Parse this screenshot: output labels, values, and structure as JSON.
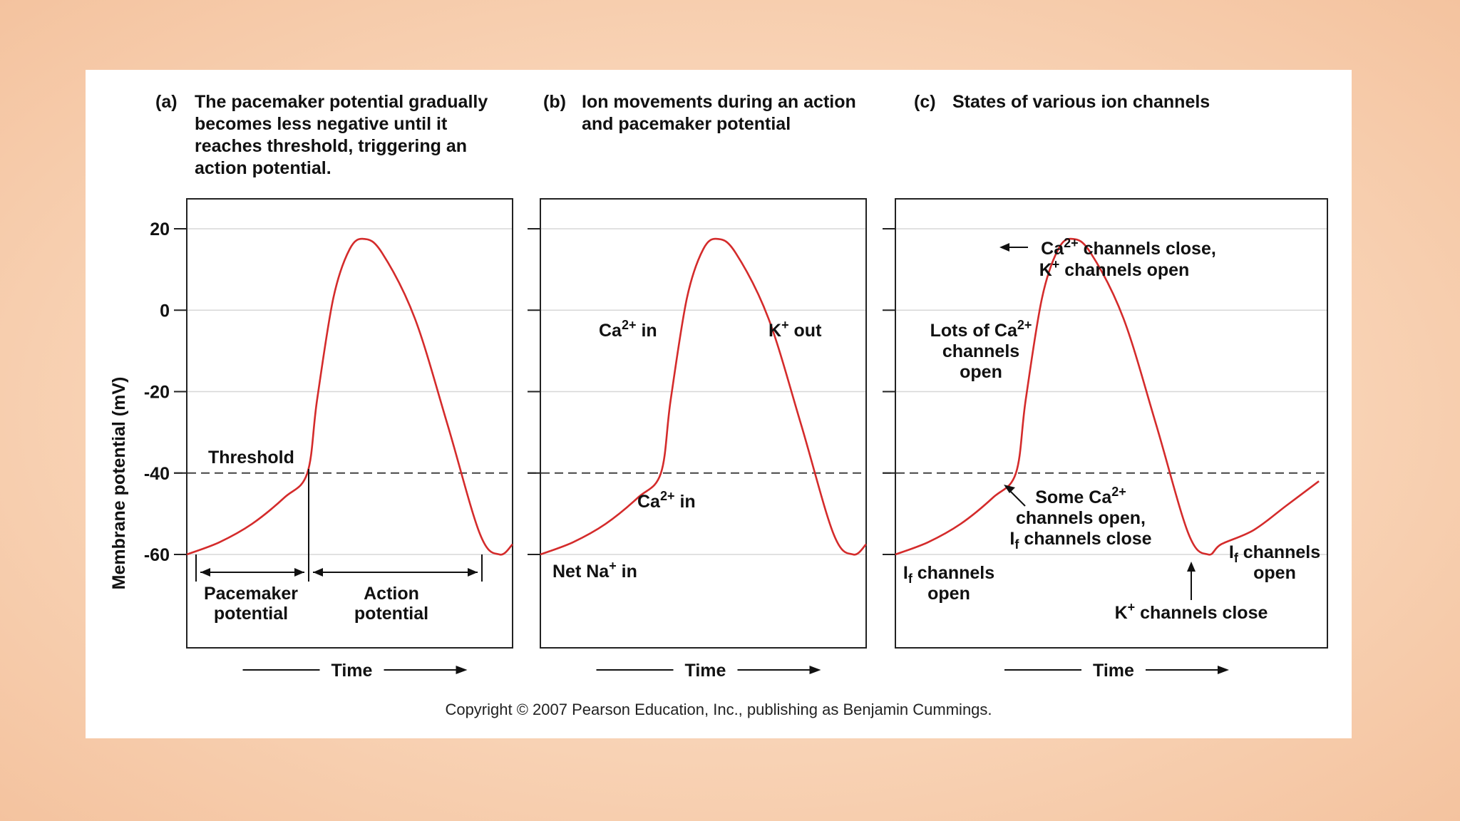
{
  "panels": [
    {
      "letter": "(a)",
      "title_lines": [
        "The pacemaker potential gradually",
        "becomes less negative until it",
        "reaches threshold, triggering an",
        "action potential."
      ]
    },
    {
      "letter": "(b)",
      "title_lines": [
        "Ion movements during an action",
        "and pacemaker potential"
      ]
    },
    {
      "letter": "(c)",
      "title_lines": [
        "States of various ion channels"
      ]
    }
  ],
  "annotations": {
    "a": {
      "threshold": "Threshold",
      "pacemaker": [
        "Pacemaker",
        "potential"
      ],
      "action": [
        "Action",
        "potential"
      ]
    },
    "b": {
      "ca_in_upper": {
        "pre": "Ca",
        "sup": "2+",
        "post": " in"
      },
      "k_out": {
        "pre": "K",
        "sup": "+",
        "post": " out"
      },
      "ca_in_lower": {
        "pre": "Ca",
        "sup": "2+",
        "post": " in"
      },
      "na_in": {
        "pre": "Net Na",
        "sup": "+",
        "post": " in"
      }
    },
    "c": {
      "ca_close_1": {
        "pre": "Ca",
        "sup": "2+",
        "post": " channels close,"
      },
      "k_open": {
        "pre": "K",
        "sup": "+",
        "post": " channels open"
      },
      "lots_1": {
        "pre": "Lots of Ca",
        "sup": "2+",
        "post": ""
      },
      "lots_2": "channels",
      "lots_3": "open",
      "some_1": {
        "pre": "Some Ca",
        "sup": "2+",
        "post": ""
      },
      "some_2": "channels open,",
      "some_3": {
        "pre": "I",
        "sub": "f",
        "post": " channels close"
      },
      "if_open_left_1": {
        "pre": "I",
        "sub": "f",
        "post": " channels"
      },
      "if_open_left_2": "open",
      "if_open_right_1": {
        "pre": "I",
        "sub": "f",
        "post": " channels"
      },
      "if_open_right_2": "open",
      "k_close": {
        "pre": "K",
        "sup": "+",
        "post": " channels close"
      }
    }
  },
  "copyright": "Copyright © 2007 Pearson Education, Inc., publishing as Benjamin Cummings.",
  "colors": {
    "trace": "#d42b2b",
    "threshold": "#444444"
  },
  "chart_data": {
    "type": "line",
    "title": "",
    "ylabel": "Membrane potential (mV)",
    "xlabel": "Time",
    "ylim": [
      -75,
      28
    ],
    "yticks": [
      20,
      0,
      -20,
      -40,
      -60
    ],
    "threshold_mV": -40,
    "grid": true,
    "series": [
      {
        "values_note_free": true,
        "x": [
          0,
          0.1,
          0.2,
          0.3,
          0.37,
          0.4,
          0.45,
          0.5,
          0.545,
          0.6,
          0.7,
          0.8,
          0.9,
          0.96,
          1.0
        ],
        "y": [
          -60,
          -57,
          -52.5,
          -46,
          -40,
          -22,
          3,
          15,
          17.5,
          14,
          -2,
          -28,
          -55,
          -60,
          -57.5
        ]
      }
    ]
  }
}
